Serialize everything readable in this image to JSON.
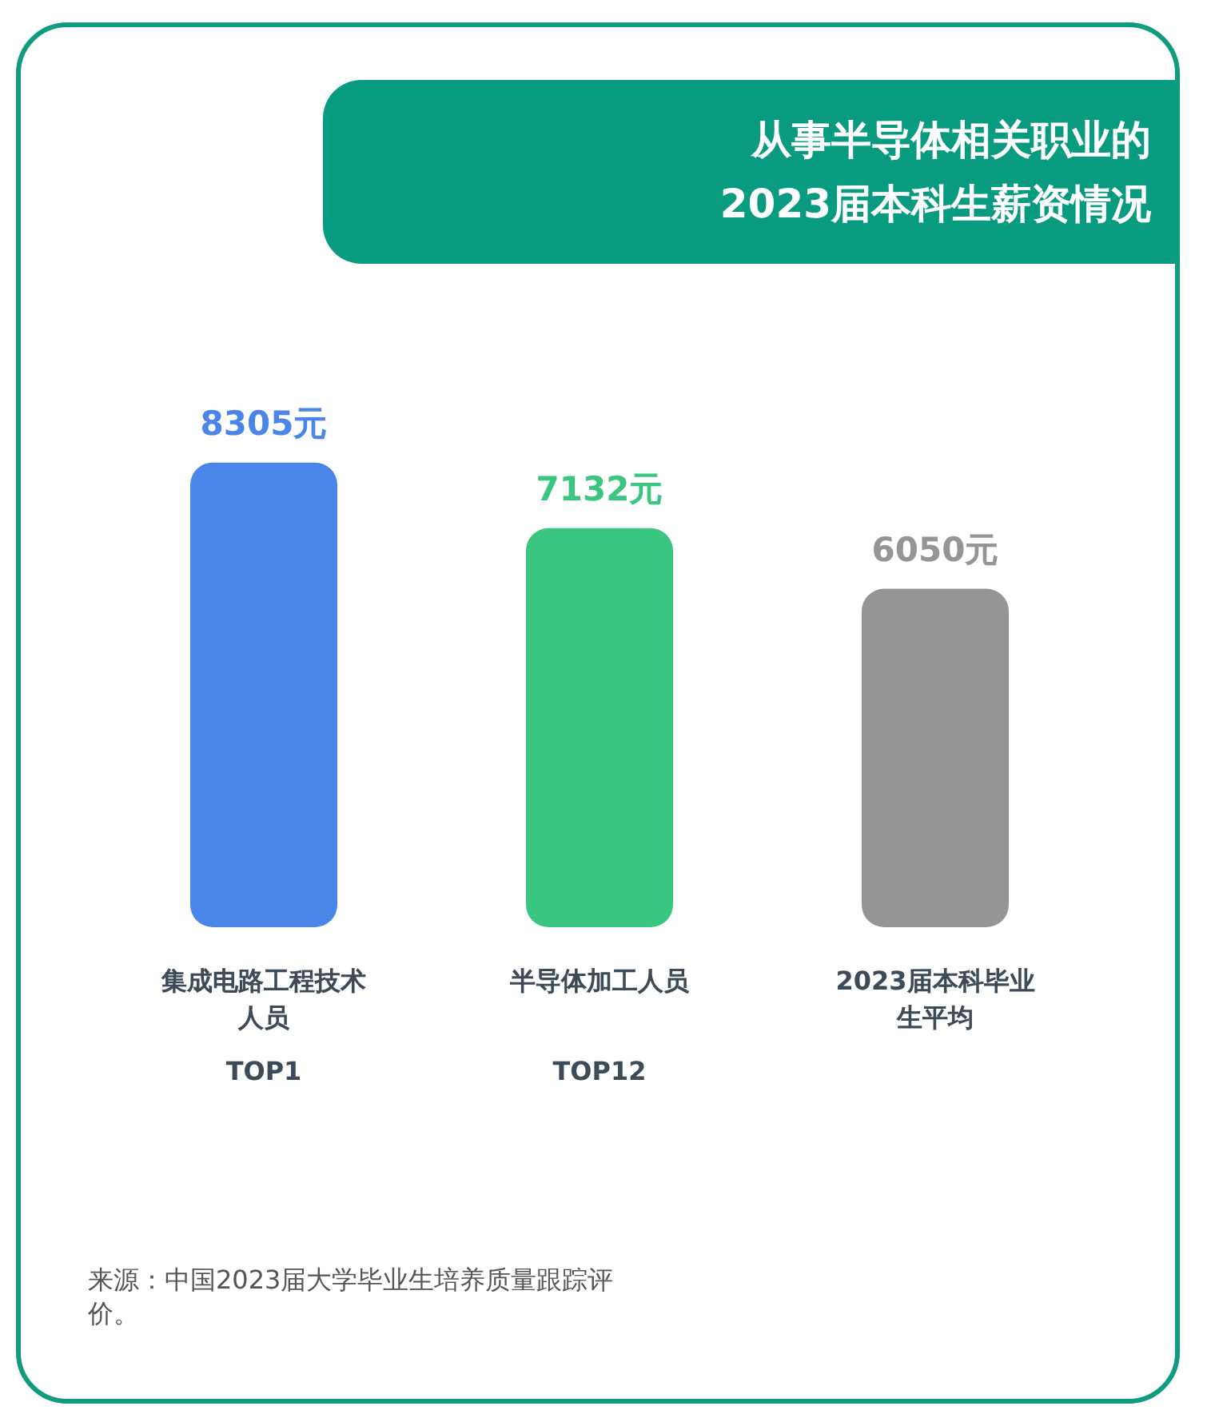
{
  "chart_data": {
    "type": "bar",
    "title": "从事半导体相关职业的2023届本科生薪资情况",
    "categories": [
      "集成电路工程技术人员",
      "半导体加工人员",
      "2023届本科毕业生平均"
    ],
    "values": [
      8305,
      7132,
      6050
    ],
    "colors": [
      "#4a86e8",
      "#3ac681",
      "#959595"
    ],
    "value_labels": [
      "8305元",
      "7132元",
      "6050元"
    ],
    "annotations": [
      "TOP1",
      "TOP12",
      "来源：中国2023届大学毕业生培养质量跟踪评价。"
    ]
  }
}
